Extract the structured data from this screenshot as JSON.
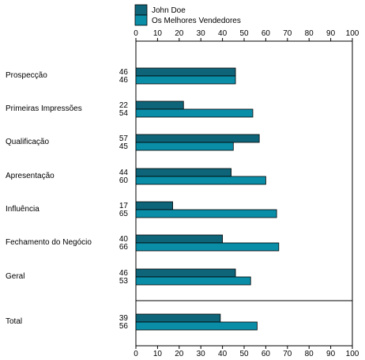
{
  "chart_data": {
    "type": "bar",
    "orientation": "horizontal",
    "title": "",
    "xlabel": "",
    "ylabel": "",
    "xlim": [
      0,
      100
    ],
    "ticks": [
      0,
      10,
      20,
      30,
      40,
      50,
      60,
      70,
      80,
      90,
      100
    ],
    "tick_axes": "top-and-bottom",
    "legend_position": "top-left",
    "grid": false,
    "categories": [
      "Prospecção",
      "Primeiras Impressões",
      "Qualificação",
      "Apresentação",
      "Influência",
      "Fechamento do Negócio",
      "Geral",
      "Total"
    ],
    "series": [
      {
        "name": "John Doe",
        "color": "#0e6478",
        "values": [
          46,
          22,
          57,
          44,
          17,
          40,
          46,
          39
        ]
      },
      {
        "name": "Os Melhores Vendedores",
        "color": "#0a8ea8",
        "values": [
          46,
          54,
          45,
          60,
          65,
          66,
          53,
          56
        ]
      }
    ],
    "separator_before": "Total"
  }
}
